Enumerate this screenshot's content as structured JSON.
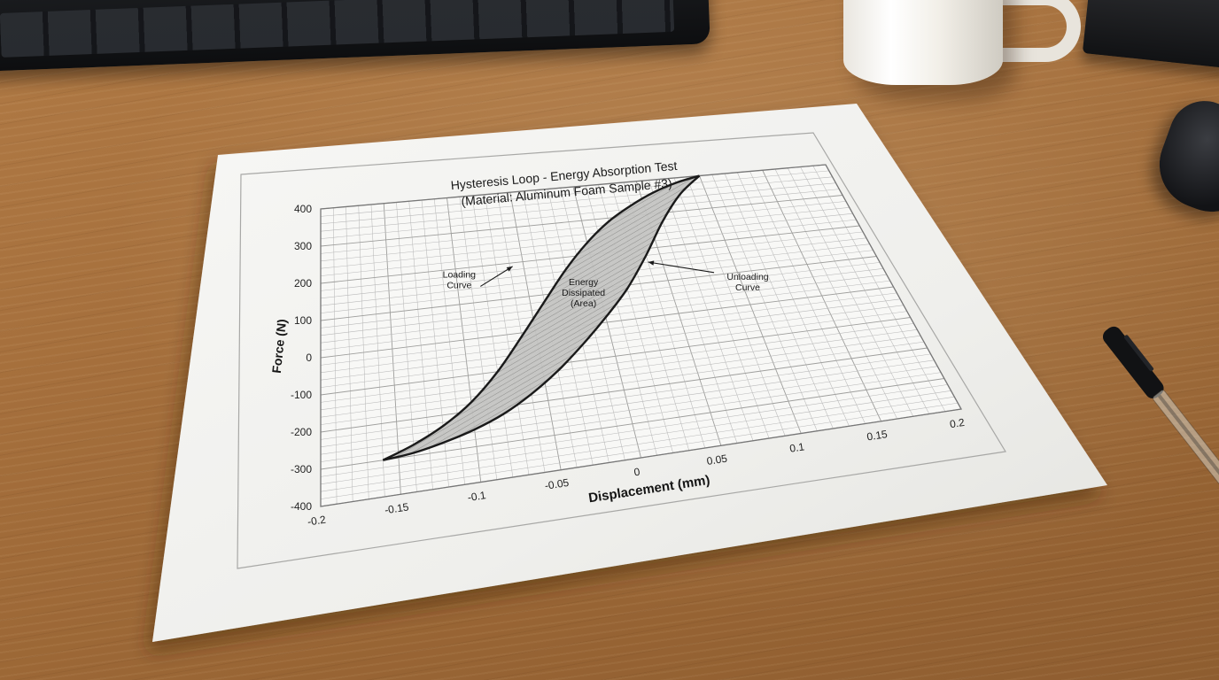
{
  "chart_data": {
    "type": "line",
    "title": "Hysteresis Loop - Energy Absorption Test",
    "subtitle": "(Material: Aluminum Foam Sample #3)",
    "xlabel": "Displacement (mm)",
    "ylabel": "Force (N)",
    "xlim": [
      -0.2,
      0.2
    ],
    "ylim": [
      -400,
      400
    ],
    "x_ticks": [
      "-0.2",
      "-0.15",
      "-0.1",
      "-0.05",
      "0",
      "0.05",
      "0.1",
      "0.15",
      "0.2"
    ],
    "y_ticks": [
      "-400",
      "-300",
      "-200",
      "-100",
      "0",
      "100",
      "200",
      "300",
      "400"
    ],
    "grid": true,
    "series": [
      {
        "name": "Loading Curve",
        "x": [
          -0.16,
          -0.14,
          -0.12,
          -0.1,
          -0.08,
          -0.06,
          -0.04,
          -0.02,
          0,
          0.02,
          0.04,
          0.06,
          0.08,
          0.1
        ],
        "y": [
          -300,
          -270,
          -230,
          -175,
          -100,
          -10,
          80,
          165,
          235,
          290,
          330,
          362,
          385,
          400
        ]
      },
      {
        "name": "Unloading Curve",
        "x": [
          0.1,
          0.08,
          0.06,
          0.04,
          0.02,
          0,
          -0.02,
          -0.04,
          -0.06,
          -0.08,
          -0.1,
          -0.12,
          -0.14,
          -0.16
        ],
        "y": [
          400,
          350,
          275,
          180,
          90,
          15,
          -55,
          -120,
          -175,
          -220,
          -252,
          -275,
          -292,
          -300
        ]
      }
    ],
    "annotations": [
      {
        "text_lines": [
          "Loading",
          "Curve"
        ],
        "x": -0.098,
        "y": 175,
        "arrow_to": [
          -0.058,
          190
        ]
      },
      {
        "text_lines": [
          "Energy",
          "Dissipated",
          "(Area)"
        ],
        "x": -0.01,
        "y": 115
      },
      {
        "text_lines": [
          "Unloading",
          "Curve"
        ],
        "x": 0.105,
        "y": 75,
        "arrow_to": [
          0.04,
          160
        ]
      }
    ],
    "shaded_region": "Energy Dissipated (Area)",
    "colors": {
      "curve": "#1a1a1a",
      "fill": "#bdbdbd",
      "grid": "#b9b9b9",
      "paper": "#f3f3f1"
    }
  }
}
